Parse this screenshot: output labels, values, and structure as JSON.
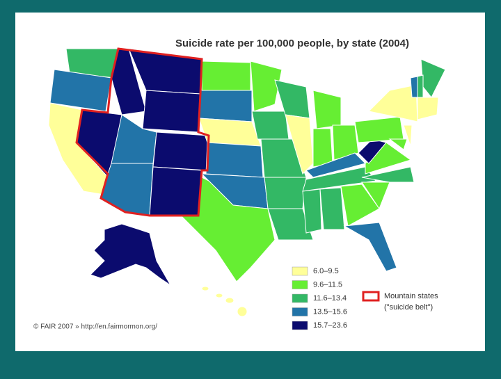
{
  "title": "Suicide rate per 100,000 people, by state (2004)",
  "legend": [
    {
      "label": "6.0–9.5",
      "color": "#ffff99"
    },
    {
      "label": "9.6–11.5",
      "color": "#66ee33"
    },
    {
      "label": "11.6–13.4",
      "color": "#33b865"
    },
    {
      "label": "13.5–15.6",
      "color": "#2274a8"
    },
    {
      "label": "15.7–23.6",
      "color": "#0b0b6e"
    }
  ],
  "outline": {
    "color": "#e02020",
    "label": [
      "Mountain states",
      "(\"suicide belt\")"
    ]
  },
  "credit": "© FAIR 2007 » http://en.fairmormon.org/"
}
